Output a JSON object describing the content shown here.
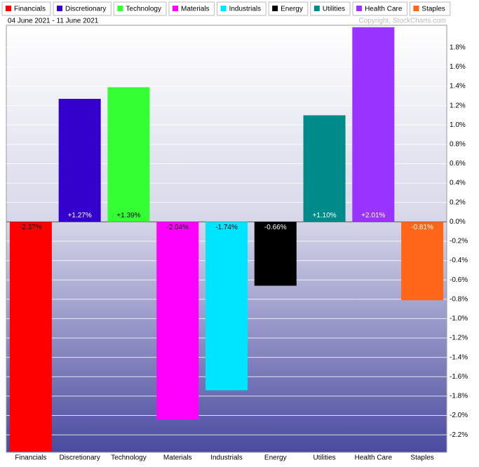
{
  "chart_data": {
    "type": "bar",
    "subtitle": "04 June 2021 - 11 June 2021",
    "copyright": "Copyright, StockCharts.com",
    "categories": [
      "Financials",
      "Discretionary",
      "Technology",
      "Materials",
      "Industrials",
      "Energy",
      "Utilities",
      "Health Care",
      "Staples"
    ],
    "values": [
      -2.37,
      1.27,
      1.39,
      -2.04,
      -1.74,
      -0.66,
      1.1,
      2.01,
      -0.81
    ],
    "value_labels": [
      "-2.37%",
      "+1.27%",
      "+1.39%",
      "-2.04%",
      "-1.74%",
      "-0.66%",
      "+1.10%",
      "+2.01%",
      "-0.81%"
    ],
    "colors": [
      "#ff0000",
      "#3300cc",
      "#33ff33",
      "#ff00ff",
      "#00e5ff",
      "#000000",
      "#008b8b",
      "#9933ff",
      "#ff6619"
    ],
    "label_colors": [
      "#000000",
      "#ffffff",
      "#000000",
      "#000000",
      "#000000",
      "#ffffff",
      "#ffffff",
      "#ffffff",
      "#ffffff"
    ],
    "ylim": [
      -2.38,
      2.03
    ],
    "yticks": [
      {
        "value": -2.2,
        "label": "-2.2%"
      },
      {
        "value": -2.0,
        "label": "-2.0%"
      },
      {
        "value": -1.8,
        "label": "-1.8%"
      },
      {
        "value": -1.6,
        "label": "-1.6%"
      },
      {
        "value": -1.4,
        "label": "-1.4%"
      },
      {
        "value": -1.2,
        "label": "-1.2%"
      },
      {
        "value": -1.0,
        "label": "-1.0%"
      },
      {
        "value": -0.8,
        "label": "-0.8%"
      },
      {
        "value": -0.6,
        "label": "-0.6%"
      },
      {
        "value": -0.4,
        "label": "-0.4%"
      },
      {
        "value": -0.2,
        "label": "-0.2%"
      },
      {
        "value": 0.0,
        "label": "0.0%"
      },
      {
        "value": 0.2,
        "label": "0.2%"
      },
      {
        "value": 0.4,
        "label": "0.4%"
      },
      {
        "value": 0.6,
        "label": "0.6%"
      },
      {
        "value": 0.8,
        "label": "0.8%"
      },
      {
        "value": 1.0,
        "label": "1.0%"
      },
      {
        "value": 1.2,
        "label": "1.2%"
      },
      {
        "value": 1.4,
        "label": "1.4%"
      },
      {
        "value": 1.6,
        "label": "1.6%"
      },
      {
        "value": 1.8,
        "label": "1.8%"
      }
    ],
    "grid": true
  }
}
